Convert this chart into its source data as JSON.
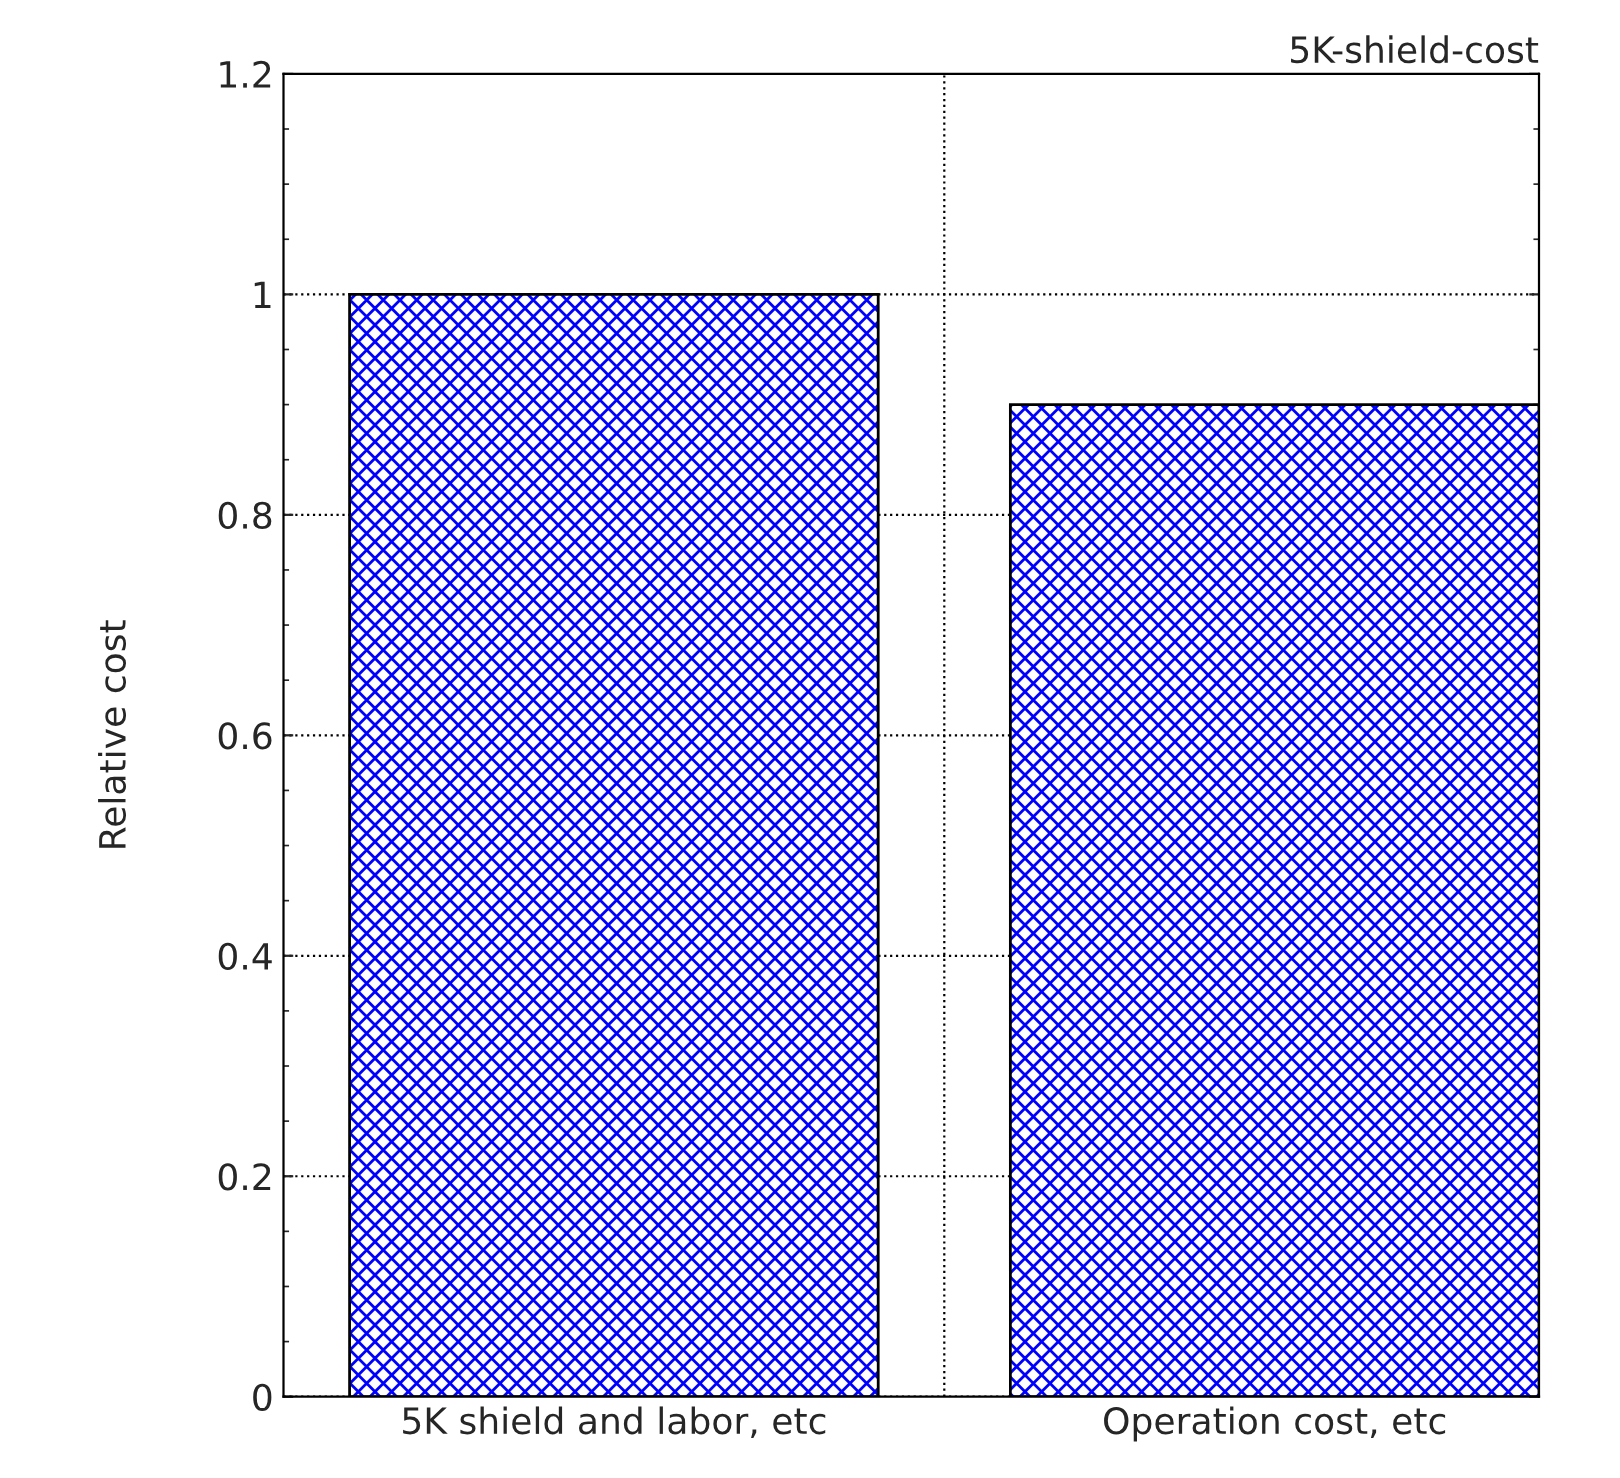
{
  "chart_data": {
    "type": "bar",
    "title": "5K-shield-cost",
    "ylabel": "Relative cost",
    "categories": [
      "5K shield and labor, etc",
      "Operation cost, etc"
    ],
    "values": [
      1.0,
      0.9
    ],
    "color": "#0000ff",
    "ylim": [
      0,
      1.2
    ],
    "yticks": [
      0,
      0.2,
      0.4,
      0.6,
      0.8,
      1,
      1.2
    ],
    "grid": true
  }
}
